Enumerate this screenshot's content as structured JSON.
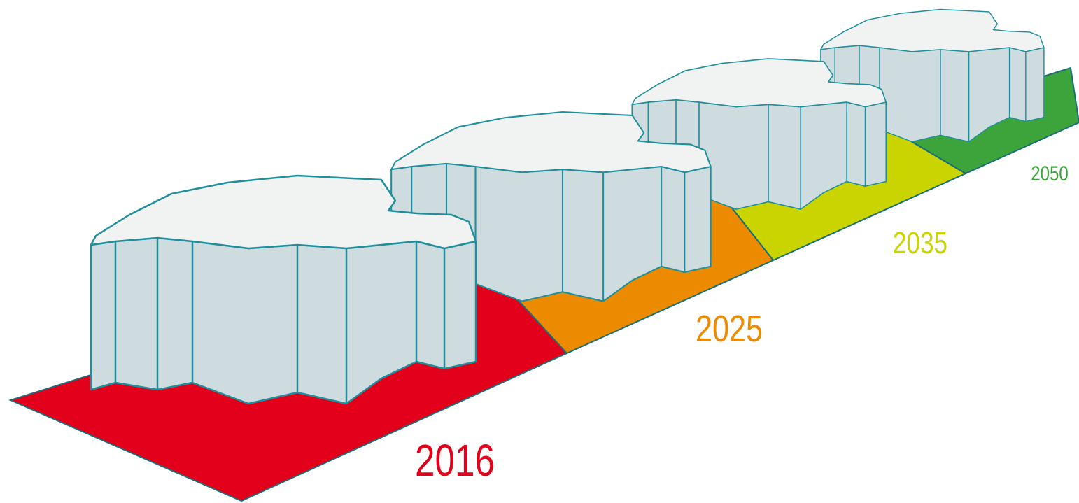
{
  "labels": [
    "2016",
    "2025",
    "2035",
    "2050"
  ]
}
